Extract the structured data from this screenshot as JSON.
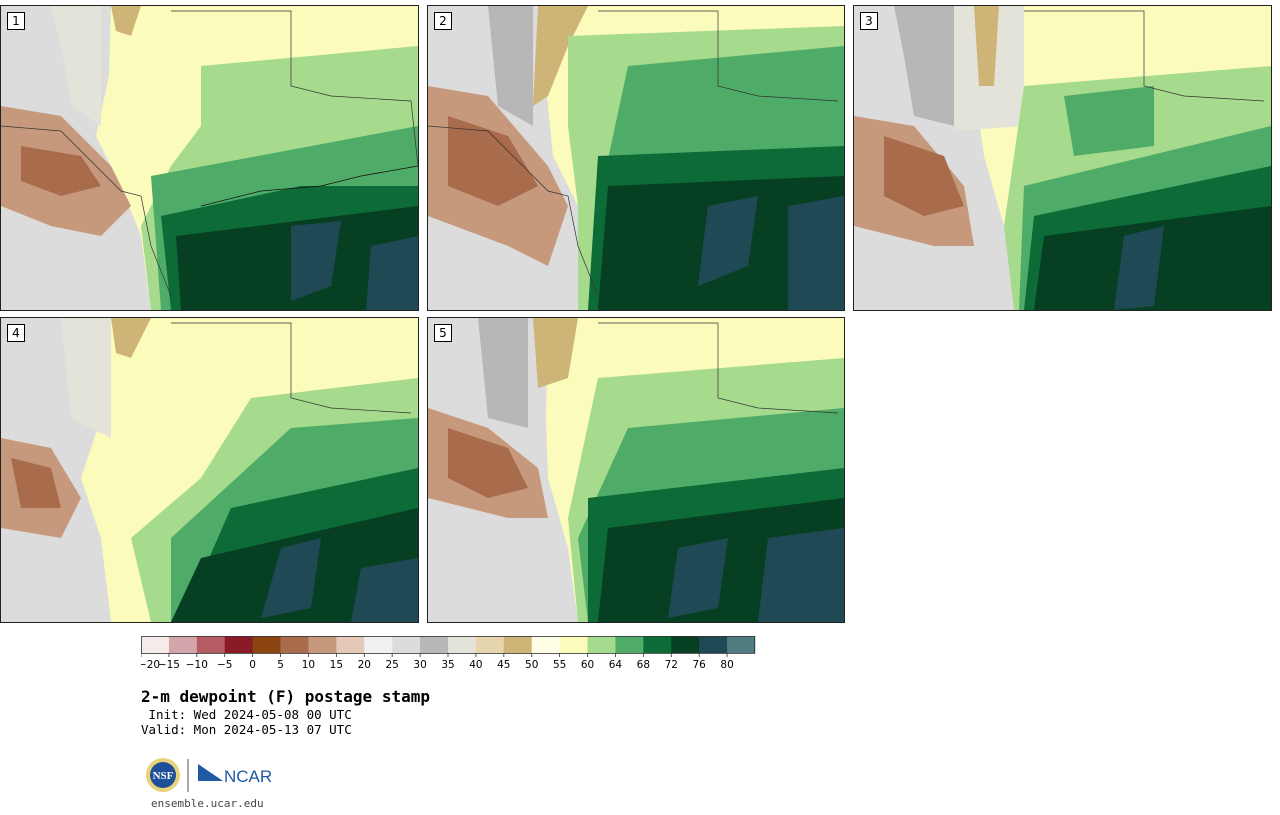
{
  "stamps": [
    {
      "label": "1"
    },
    {
      "label": "2"
    },
    {
      "label": "3"
    },
    {
      "label": "4"
    },
    {
      "label": "5"
    }
  ],
  "colorbar": {
    "ticks": [
      "−20",
      "−15",
      "−10",
      "−5",
      "0",
      "5",
      "10",
      "15",
      "20",
      "25",
      "30",
      "35",
      "40",
      "45",
      "50",
      "55",
      "60",
      "64",
      "68",
      "72",
      "76",
      "80"
    ],
    "colors": [
      "#f5ebeb",
      "#d4a5ab",
      "#b45b64",
      "#8a1a24",
      "#8c4510",
      "#a86b4c",
      "#c7997c",
      "#e5c8b7",
      "#f1f1f1",
      "#dcdcdc",
      "#b7b7b7",
      "#e3e3da",
      "#e6d5ad",
      "#cfb478",
      "#fefde6",
      "#fbfcbc",
      "#a6da8c",
      "#4fac68",
      "#0c6b36",
      "#063f22",
      "#1f4a55",
      "#507b80"
    ]
  },
  "title": "2-m dewpoint (F) postage stamp",
  "init": " Init: Wed 2024-05-08 00 UTC",
  "valid": "Valid: Mon 2024-05-13 07 UTC",
  "logo": {
    "nsf": "NSF",
    "ncar": "NCAR"
  },
  "site": "ensemble.ucar.edu"
}
